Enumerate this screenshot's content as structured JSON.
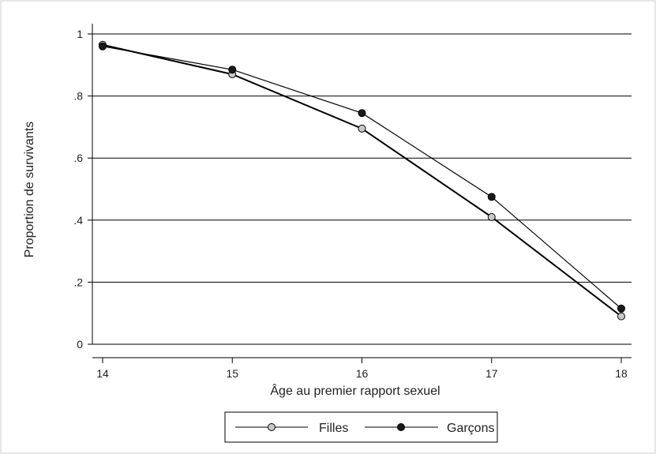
{
  "chart_data": {
    "type": "line",
    "xlabel": "Âge au premier rapport sexuel",
    "ylabel": "Proportion de survivants",
    "x": [
      14,
      15,
      16,
      17,
      18
    ],
    "xlim": [
      14,
      18
    ],
    "ylim": [
      0,
      1
    ],
    "x_ticks": [
      "14",
      "15",
      "16",
      "17",
      "18"
    ],
    "y_ticks": [
      {
        "value": 0,
        "label": "0"
      },
      {
        "value": 0.2,
        "label": ".2"
      },
      {
        "value": 0.4,
        "label": ".4"
      },
      {
        "value": 0.6,
        "label": ".6"
      },
      {
        "value": 0.8,
        "label": ".8"
      },
      {
        "value": 1,
        "label": "1"
      }
    ],
    "grid": true,
    "legend_position": "bottom",
    "series": [
      {
        "name": "Filles",
        "values": [
          0.965,
          0.87,
          0.695,
          0.41,
          0.09
        ],
        "marker_color": "#c8c8c8"
      },
      {
        "name": "Garçons",
        "values": [
          0.96,
          0.885,
          0.745,
          0.475,
          0.115
        ],
        "marker_color": "#1a1a1a"
      }
    ]
  }
}
